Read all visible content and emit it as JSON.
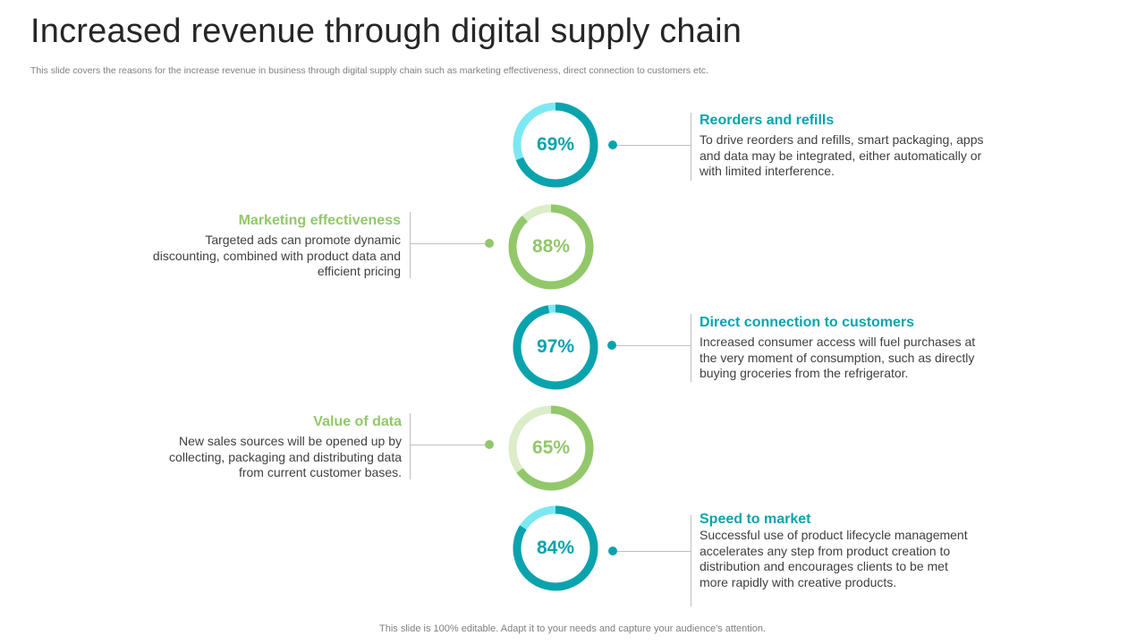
{
  "slide": {
    "title": "Increased revenue through digital supply chain",
    "subtitle": "This slide covers the reasons for the increase revenue in business through digital supply chain such as marketing effectiveness, direct connection to customers etc.",
    "footer": "This slide is 100% editable. Adapt it to your needs and capture your audience's attention."
  },
  "colors": {
    "teal": "#0aa3ad",
    "teal_light": "#7ee8f2",
    "green": "#92c86b",
    "green_light": "#dbedc9",
    "line": "#bfbfbf"
  },
  "items": [
    {
      "value": 69,
      "label": "69%",
      "theme": "teal",
      "heading": "Reorders and refills",
      "text": "To drive reorders and refills, smart packaging, apps and data may be integrated, either automatically or with limited interference."
    },
    {
      "value": 88,
      "label": "88%",
      "theme": "green",
      "heading": "Marketing effectiveness",
      "text": "Targeted ads can promote dynamic discounting, combined with product data and efficient pricing"
    },
    {
      "value": 97,
      "label": "97%",
      "theme": "teal",
      "heading": "Direct connection to customers",
      "text": "Increased consumer access will fuel purchases at the very moment of consumption, such as directly buying groceries from the refrigerator."
    },
    {
      "value": 65,
      "label": "65%",
      "theme": "green",
      "heading": "Value of data",
      "text": "New sales sources will be opened up by collecting, packaging and distributing data from current customer bases."
    },
    {
      "value": 84,
      "label": "84%",
      "theme": "teal",
      "heading": "Speed to market",
      "text": "Successful use of product lifecycle management accelerates any step from product creation to distribution and encourages clients to be met more rapidly with creative products."
    }
  ]
}
